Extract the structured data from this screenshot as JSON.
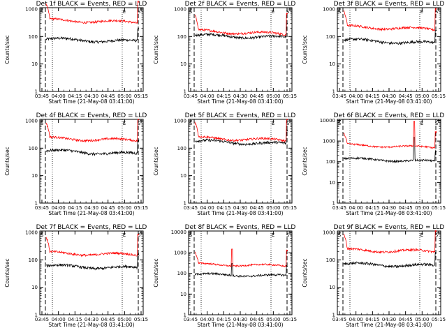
{
  "style": {
    "events_color": "#000000",
    "lld_color": "#ff0000",
    "background": "#ffffff"
  },
  "chart_data": [
    {
      "type": "line",
      "title": "Det 1f BLACK = Events, RED = LLD",
      "ylabel": "Counts/sec",
      "xlabel": "Start Time (21-May-08 03:41:00)",
      "x_tick_labels": [
        "03:45",
        "04:00",
        "04:15",
        "04:30",
        "04:45",
        "05:00",
        "05:15"
      ],
      "y_scale": "log",
      "y_tick_labels": [
        "1",
        "10",
        "100",
        "1000"
      ],
      "corner_labels": [
        "S",
        "E",
        "S"
      ],
      "series": [
        {
          "name": "Events",
          "color": "#000000",
          "level": 80,
          "end_level": 65
        },
        {
          "name": "LLD",
          "color": "#ff0000",
          "level": 400,
          "end_level": 320
        }
      ]
    },
    {
      "type": "line",
      "title": "Det 2f BLACK = Events, RED = LLD",
      "ylabel": "Counts/sec",
      "xlabel": "Start Time (21-May-08 03:41:00)",
      "x_tick_labels": [
        "03:45",
        "04:00",
        "04:15",
        "04:30",
        "04:45",
        "05:00",
        "05:15"
      ],
      "y_scale": "log",
      "y_tick_labels": [
        "1",
        "10",
        "100",
        "1000"
      ],
      "corner_labels": [
        "S",
        "E",
        "S"
      ],
      "series": [
        {
          "name": "Events",
          "color": "#000000",
          "level": 110,
          "end_level": 90
        },
        {
          "name": "LLD",
          "color": "#ff0000",
          "level": 160,
          "end_level": 120
        }
      ]
    },
    {
      "type": "line",
      "title": "Det 3f BLACK = Events, RED = LLD",
      "ylabel": "Counts/sec",
      "xlabel": "Start Time (21-May-08 03:41:00)",
      "x_tick_labels": [
        "03:45",
        "04:00",
        "04:15",
        "04:30",
        "04:45",
        "05:00",
        "05:15"
      ],
      "y_scale": "log",
      "y_tick_labels": [
        "1",
        "10",
        "100",
        "1000"
      ],
      "corner_labels": [
        "S",
        "E",
        "S"
      ],
      "series": [
        {
          "name": "Events",
          "color": "#000000",
          "level": 75,
          "end_level": 55
        },
        {
          "name": "LLD",
          "color": "#ff0000",
          "level": 230,
          "end_level": 180
        }
      ]
    },
    {
      "type": "line",
      "title": "Det 4f BLACK = Events, RED = LLD",
      "ylabel": "Counts/sec",
      "xlabel": "Start Time (21-May-08 03:41:00)",
      "x_tick_labels": [
        "03:45",
        "04:00",
        "04:15",
        "04:30",
        "04:45",
        "05:00",
        "05:15"
      ],
      "y_scale": "log",
      "y_tick_labels": [
        "1",
        "10",
        "100",
        "1000"
      ],
      "corner_labels": [
        "S",
        "E",
        "S"
      ],
      "series": [
        {
          "name": "Events",
          "color": "#000000",
          "level": 80,
          "end_level": 60
        },
        {
          "name": "LLD",
          "color": "#ff0000",
          "level": 230,
          "end_level": 190
        }
      ]
    },
    {
      "type": "line",
      "title": "Det 5f BLACK = Events, RED = LLD",
      "ylabel": "Counts/sec",
      "xlabel": "Start Time (21-May-08 03:41:00)",
      "x_tick_labels": [
        "03:45",
        "04:00",
        "04:15",
        "04:30",
        "04:45",
        "05:00",
        "05:15"
      ],
      "y_scale": "log",
      "y_tick_labels": [
        "1",
        "10",
        "100",
        "1000"
      ],
      "corner_labels": [
        "S",
        "E",
        "S"
      ],
      "series": [
        {
          "name": "Events",
          "color": "#000000",
          "level": 180,
          "end_level": 140
        },
        {
          "name": "LLD",
          "color": "#ff0000",
          "level": 240,
          "end_level": 190
        }
      ]
    },
    {
      "type": "line",
      "title": "Det 6f BLACK = Events, RED = LLD",
      "ylabel": "Counts/sec",
      "xlabel": "Start Time (21-May-08 03:41:00)",
      "x_tick_labels": [
        "03:45",
        "04:00",
        "04:15",
        "04:30",
        "04:45",
        "05:00",
        "05:15"
      ],
      "y_scale": "log",
      "y_tick_labels": [
        "1",
        "10",
        "100",
        "1000",
        "10000"
      ],
      "corner_labels": [
        "S",
        "E",
        "S"
      ],
      "series": [
        {
          "name": "Events",
          "color": "#000000",
          "level": 140,
          "end_level": 100
        },
        {
          "name": "LLD",
          "color": "#ff0000",
          "level": 650,
          "end_level": 480
        }
      ]
    },
    {
      "type": "line",
      "title": "Det 7f BLACK = Events, RED = LLD",
      "ylabel": "Counts/sec",
      "xlabel": "Start Time (21-May-08 03:41:00)",
      "x_tick_labels": [
        "03:45",
        "04:00",
        "04:15",
        "04:30",
        "04:45",
        "05:00",
        "05:15"
      ],
      "y_scale": "log",
      "y_tick_labels": [
        "1",
        "10",
        "100",
        "1000"
      ],
      "corner_labels": [
        "S",
        "E",
        "S"
      ],
      "series": [
        {
          "name": "Events",
          "color": "#000000",
          "level": 60,
          "end_level": 50
        },
        {
          "name": "LLD",
          "color": "#ff0000",
          "level": 180,
          "end_level": 150
        }
      ]
    },
    {
      "type": "line",
      "title": "Det 8f BLACK = Events, RED = LLD",
      "ylabel": "Counts/sec",
      "xlabel": "Start Time (21-May-08 03:41:00)",
      "x_tick_labels": [
        "03:45",
        "04:00",
        "04:15",
        "04:30",
        "04:45",
        "05:00",
        "05:15"
      ],
      "y_scale": "log",
      "y_tick_labels": [
        "1",
        "10",
        "100",
        "1000",
        "10000"
      ],
      "corner_labels": [
        "S",
        "E",
        "S"
      ],
      "series": [
        {
          "name": "Events",
          "color": "#000000",
          "level": 90,
          "end_level": 75
        },
        {
          "name": "LLD",
          "color": "#ff0000",
          "level": 280,
          "end_level": 230
        }
      ]
    },
    {
      "type": "line",
      "title": "Det 9f BLACK = Events, RED = LLD",
      "ylabel": "Counts/sec",
      "xlabel": "Start Time (21-May-08 03:41:00)",
      "x_tick_labels": [
        "03:45",
        "04:00",
        "04:15",
        "04:30",
        "04:45",
        "05:00",
        "05:15"
      ],
      "y_scale": "log",
      "y_tick_labels": [
        "1",
        "10",
        "100",
        "1000"
      ],
      "corner_labels": [
        "S",
        "E",
        "S"
      ],
      "series": [
        {
          "name": "Events",
          "color": "#000000",
          "level": 70,
          "end_level": 60
        },
        {
          "name": "LLD",
          "color": "#ff0000",
          "level": 230,
          "end_level": 200
        }
      ]
    }
  ]
}
